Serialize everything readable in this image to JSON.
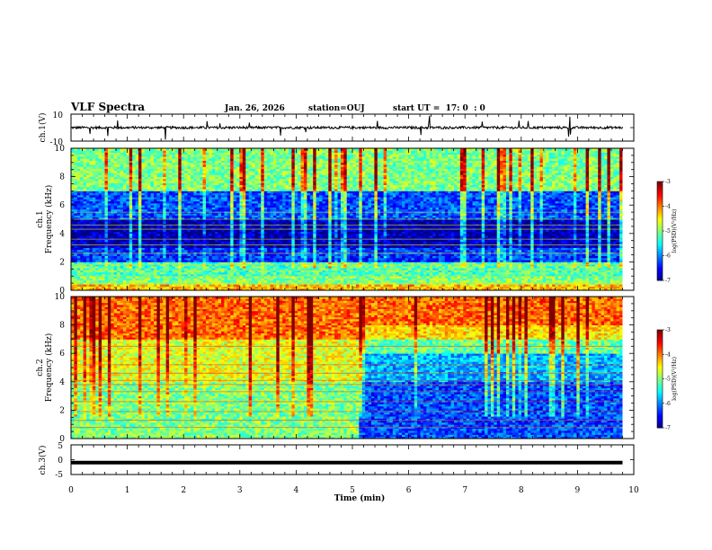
{
  "header": {
    "title": "VLF Spectra",
    "date": "Jan. 26, 2026",
    "station": "station=OUJ",
    "start": "start UT =  17: 0  : 0"
  },
  "chart_data": [
    {
      "type": "line",
      "panel": "ch1-waveform",
      "ylabel": "ch.1(V)",
      "ylim": [
        -10,
        10
      ],
      "y_ticks": [
        "10",
        "-10"
      ],
      "xlim": [
        0,
        10
      ],
      "trace": "noisy baseline near 0 V with sparse spikes up to about +/-10 V"
    },
    {
      "type": "heatmap",
      "panel": "ch1-spectrogram",
      "ylabel": "ch.1\nFrequency (kHz)",
      "ylabel_lines": [
        "ch.1",
        "Frequency (kHz)"
      ],
      "ylim": [
        0,
        10
      ],
      "y_ticks": [
        "0",
        "2",
        "4",
        "6",
        "8",
        "10"
      ],
      "xlim": [
        0,
        9.8
      ],
      "colorbar": {
        "label": "log(PSD)(V²/Hz)",
        "range": [
          -7,
          -3
        ],
        "ticks": [
          "-3",
          "-4",
          "-5",
          "-6",
          "-7"
        ]
      },
      "bands": [
        {
          "f_from": 0,
          "f_to": 0.4,
          "log_psd": -4.2
        },
        {
          "f_from": 0.4,
          "f_to": 1.0,
          "log_psd": -5.0
        },
        {
          "f_from": 1.0,
          "f_to": 2.0,
          "log_psd": -5.2
        },
        {
          "f_from": 2.0,
          "f_to": 3.0,
          "log_psd": -6.3
        },
        {
          "f_from": 3.0,
          "f_to": 5.0,
          "log_psd": -6.8
        },
        {
          "f_from": 5.0,
          "f_to": 7.0,
          "log_psd": -6.2
        },
        {
          "f_from": 7.0,
          "f_to": 10.0,
          "log_psd": -5.0
        }
      ]
    },
    {
      "type": "heatmap",
      "panel": "ch2-spectrogram",
      "ylabel": "ch.2\nFrequency (kHz)",
      "ylabel_lines": [
        "ch.2",
        "Frequency (kHz)"
      ],
      "ylim": [
        0,
        10
      ],
      "y_ticks": [
        "0",
        "2",
        "4",
        "6",
        "8",
        "10"
      ],
      "xlim": [
        0,
        9.8
      ],
      "colorbar": {
        "label": "log(PSD)(V²/Hz)",
        "range": [
          -7,
          -3
        ],
        "ticks": [
          "-3",
          "-4",
          "-5",
          "-6",
          "-7"
        ]
      },
      "bands": [
        {
          "f_from": 0,
          "f_to": 4.0,
          "log_psd": -5.0
        },
        {
          "f_from": 4.0,
          "f_to": 7.0,
          "log_psd": -4.6
        },
        {
          "f_from": 7.0,
          "f_to": 10.0,
          "log_psd": -3.9
        }
      ]
    },
    {
      "type": "line",
      "panel": "ch3-waveform",
      "ylabel": "ch.3(V)",
      "ylim": [
        -5,
        5
      ],
      "y_ticks": [
        "5",
        "0",
        "-5"
      ],
      "xlim": [
        0,
        10
      ],
      "trace": "flat thick line near -1 V",
      "y_value": -1
    }
  ],
  "x_axis": {
    "label": "Time (min)",
    "ticks": [
      "0",
      "1",
      "2",
      "3",
      "4",
      "5",
      "6",
      "7",
      "8",
      "9",
      "10"
    ]
  }
}
